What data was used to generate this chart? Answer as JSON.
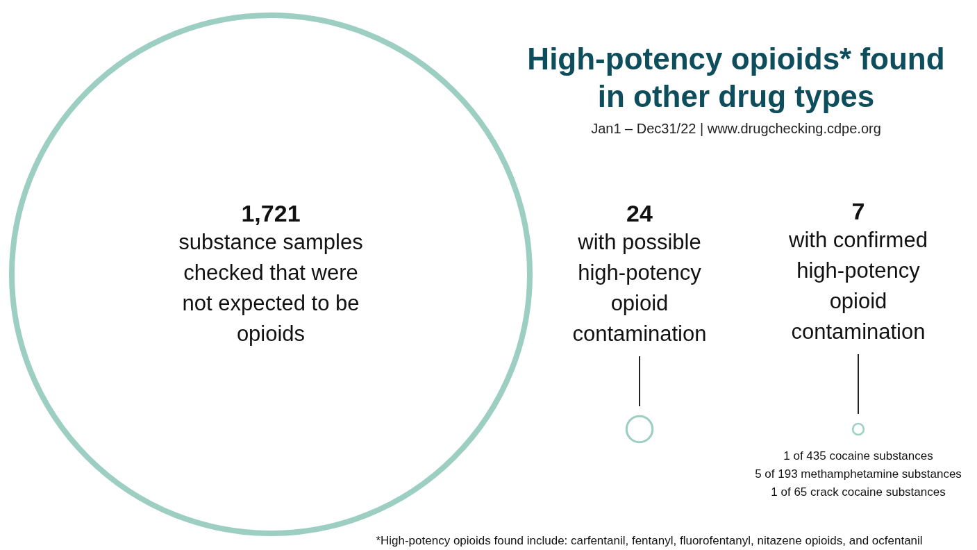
{
  "chart_data": {
    "type": "other",
    "title": "High-potency opioids* found in other drug types",
    "subtitle": "Jan1 – Dec31/22 | www.drugchecking.cdpe.org",
    "categories": [
      "substance samples checked that were not expected to be opioids",
      "with possible high-potency opioid contamination",
      "with confirmed high-potency opioid contamination"
    ],
    "values": [
      1721,
      24,
      7
    ],
    "value_labels": [
      "1,721",
      "24",
      "7"
    ],
    "color": "#9ccfc2",
    "annotations": [
      "1 of 435 cocaine substances",
      "5 of 193 methamphetamine substances",
      "1 of 65 crack cocaine substances",
      "*High-potency opioids found include: carfentanil, fentanyl, fluorofentanyl, nitazene opioids, and ocfentanil"
    ]
  }
}
